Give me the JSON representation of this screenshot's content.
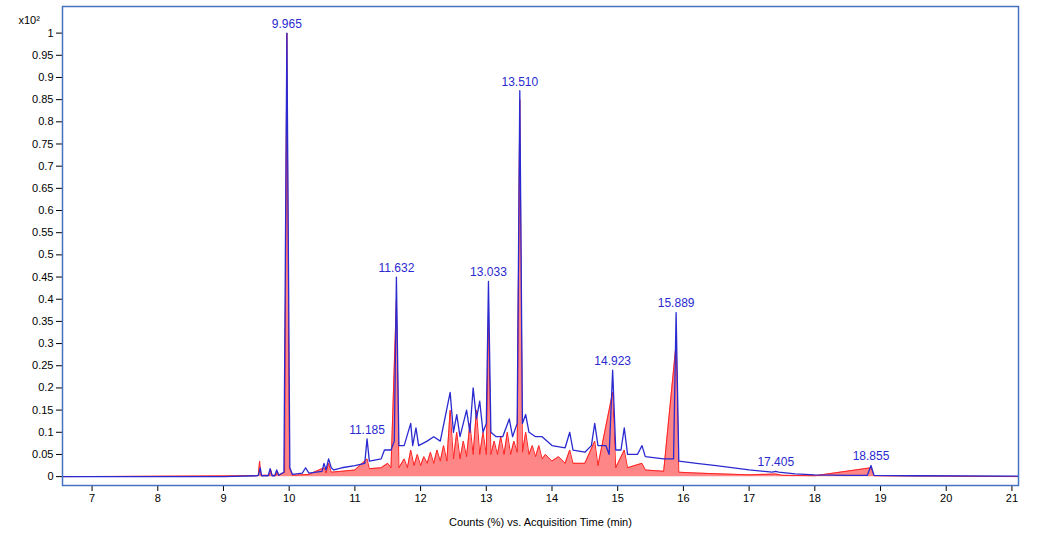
{
  "chart_data": {
    "type": "line",
    "ylabel": "x10²",
    "xlabel": "Counts (%) vs. Acquisition Time (min)",
    "xlim": [
      6.55,
      21.1
    ],
    "ylim": [
      -0.02,
      1.06
    ],
    "xticks": [
      7,
      8,
      9,
      10,
      11,
      12,
      13,
      14,
      15,
      16,
      17,
      18,
      19,
      20,
      21
    ],
    "yticks": [
      0,
      0.05,
      0.1,
      0.15,
      0.2,
      0.25,
      0.3,
      0.35,
      0.4,
      0.45,
      0.5,
      0.55,
      0.6,
      0.65,
      0.7,
      0.75,
      0.8,
      0.85,
      0.9,
      0.95,
      1
    ],
    "grid": false,
    "series": [
      {
        "type": "area",
        "color": "#ff2222",
        "x": [
          6.55,
          9.5,
          9.53,
          9.55,
          9.57,
          9.7,
          9.72,
          9.74,
          9.8,
          9.82,
          9.84,
          9.93,
          9.965,
          10.0,
          10.05,
          10.3,
          10.53,
          10.56,
          10.6,
          10.64,
          10.8,
          11.0,
          11.185,
          11.22,
          11.4,
          11.5,
          11.55,
          11.632,
          11.67,
          11.75,
          11.8,
          11.85,
          11.9,
          11.95,
          12.0,
          12.05,
          12.1,
          12.15,
          12.2,
          12.25,
          12.3,
          12.35,
          12.4,
          12.45,
          12.5,
          12.55,
          12.6,
          12.65,
          12.7,
          12.75,
          12.8,
          12.85,
          12.9,
          12.95,
          13.0,
          13.033,
          13.07,
          13.12,
          13.17,
          13.22,
          13.27,
          13.32,
          13.37,
          13.42,
          13.47,
          13.51,
          13.55,
          13.6,
          13.65,
          13.7,
          13.75,
          13.8,
          13.85,
          13.9,
          14.0,
          14.1,
          14.2,
          14.27,
          14.32,
          14.5,
          14.65,
          14.7,
          14.923,
          14.97,
          15.1,
          15.15,
          15.37,
          15.42,
          15.7,
          15.889,
          15.93,
          16.2,
          16.6,
          17.0,
          17.405,
          17.5,
          18.0,
          18.855,
          18.9,
          21.1
        ],
        "values": [
          0,
          0.002,
          0.003,
          0.035,
          0.003,
          0.003,
          0.015,
          0.003,
          0.003,
          0.012,
          0.003,
          0.01,
          1.0,
          0.02,
          0.003,
          0.005,
          0.02,
          0.008,
          0.03,
          0.01,
          0.012,
          0.015,
          0.04,
          0.018,
          0.02,
          0.03,
          0.02,
          0.4,
          0.02,
          0.04,
          0.02,
          0.06,
          0.025,
          0.05,
          0.025,
          0.045,
          0.03,
          0.055,
          0.03,
          0.06,
          0.035,
          0.07,
          0.035,
          0.15,
          0.04,
          0.1,
          0.04,
          0.08,
          0.045,
          0.12,
          0.05,
          0.15,
          0.05,
          0.1,
          0.05,
          0.36,
          0.05,
          0.08,
          0.05,
          0.09,
          0.05,
          0.1,
          0.05,
          0.08,
          0.055,
          0.85,
          0.055,
          0.1,
          0.05,
          0.07,
          0.045,
          0.07,
          0.04,
          0.05,
          0.035,
          0.045,
          0.03,
          0.06,
          0.03,
          0.03,
          0.08,
          0.025,
          0.19,
          0.02,
          0.06,
          0.02,
          0.03,
          0.015,
          0.012,
          0.3,
          0.01,
          0.008,
          0.006,
          0.004,
          0.006,
          0.003,
          0.002,
          0.02,
          0.002,
          0
        ]
      },
      {
        "type": "line",
        "color": "#2a2ad0",
        "x": [
          6.55,
          9.0,
          9.5,
          9.53,
          9.56,
          9.58,
          9.68,
          9.71,
          9.74,
          9.78,
          9.81,
          9.84,
          9.92,
          9.965,
          10.01,
          10.05,
          10.2,
          10.25,
          10.3,
          10.5,
          10.53,
          10.56,
          10.6,
          10.64,
          10.68,
          10.8,
          11.0,
          11.15,
          11.185,
          11.22,
          11.4,
          11.45,
          11.55,
          11.6,
          11.632,
          11.67,
          11.75,
          11.85,
          11.88,
          11.93,
          11.97,
          12.1,
          12.2,
          12.3,
          12.45,
          12.5,
          12.55,
          12.6,
          12.7,
          12.75,
          12.8,
          12.85,
          12.9,
          12.95,
          13.0,
          13.033,
          13.07,
          13.15,
          13.25,
          13.35,
          13.4,
          13.47,
          13.51,
          13.55,
          13.6,
          13.65,
          13.75,
          13.85,
          14.0,
          14.2,
          14.27,
          14.32,
          14.5,
          14.6,
          14.65,
          14.7,
          14.82,
          14.87,
          14.923,
          14.97,
          15.05,
          15.1,
          15.15,
          15.3,
          15.37,
          15.42,
          15.7,
          15.85,
          15.889,
          15.93,
          16.2,
          16.5,
          17.0,
          17.35,
          17.405,
          17.45,
          17.7,
          18.0,
          18.5,
          18.8,
          18.855,
          18.9,
          19.5,
          21.1
        ],
        "values": [
          0,
          0,
          0.002,
          0.003,
          0.02,
          0.002,
          0.002,
          0.018,
          0.002,
          0.002,
          0.015,
          0.003,
          0.01,
          1.0,
          0.02,
          0.005,
          0.008,
          0.02,
          0.008,
          0.012,
          0.03,
          0.015,
          0.04,
          0.02,
          0.015,
          0.02,
          0.025,
          0.03,
          0.085,
          0.035,
          0.04,
          0.06,
          0.06,
          0.08,
          0.45,
          0.07,
          0.07,
          0.12,
          0.07,
          0.11,
          0.07,
          0.08,
          0.09,
          0.08,
          0.19,
          0.1,
          0.14,
          0.09,
          0.15,
          0.1,
          0.2,
          0.13,
          0.17,
          0.1,
          0.12,
          0.44,
          0.1,
          0.09,
          0.09,
          0.13,
          0.09,
          0.12,
          0.87,
          0.12,
          0.14,
          0.1,
          0.09,
          0.09,
          0.07,
          0.065,
          0.1,
          0.06,
          0.055,
          0.07,
          0.12,
          0.07,
          0.07,
          0.05,
          0.24,
          0.06,
          0.06,
          0.11,
          0.05,
          0.05,
          0.07,
          0.045,
          0.04,
          0.04,
          0.37,
          0.035,
          0.03,
          0.025,
          0.015,
          0.01,
          0.012,
          0.01,
          0.006,
          0.004,
          0.003,
          0.003,
          0.025,
          0.003,
          0.002,
          0.001
        ]
      }
    ],
    "annotations": [
      {
        "x": 9.965,
        "y": 1.0,
        "label": "9.965"
      },
      {
        "x": 11.185,
        "y": 0.085,
        "label": "11.185"
      },
      {
        "x": 11.632,
        "y": 0.45,
        "label": "11.632"
      },
      {
        "x": 13.033,
        "y": 0.44,
        "label": "13.033"
      },
      {
        "x": 13.51,
        "y": 0.87,
        "label": "13.510"
      },
      {
        "x": 14.923,
        "y": 0.24,
        "label": "14.923"
      },
      {
        "x": 15.889,
        "y": 0.37,
        "label": "15.889"
      },
      {
        "x": 17.405,
        "y": 0.012,
        "label": "17.405"
      },
      {
        "x": 18.855,
        "y": 0.025,
        "label": "18.855"
      }
    ]
  }
}
